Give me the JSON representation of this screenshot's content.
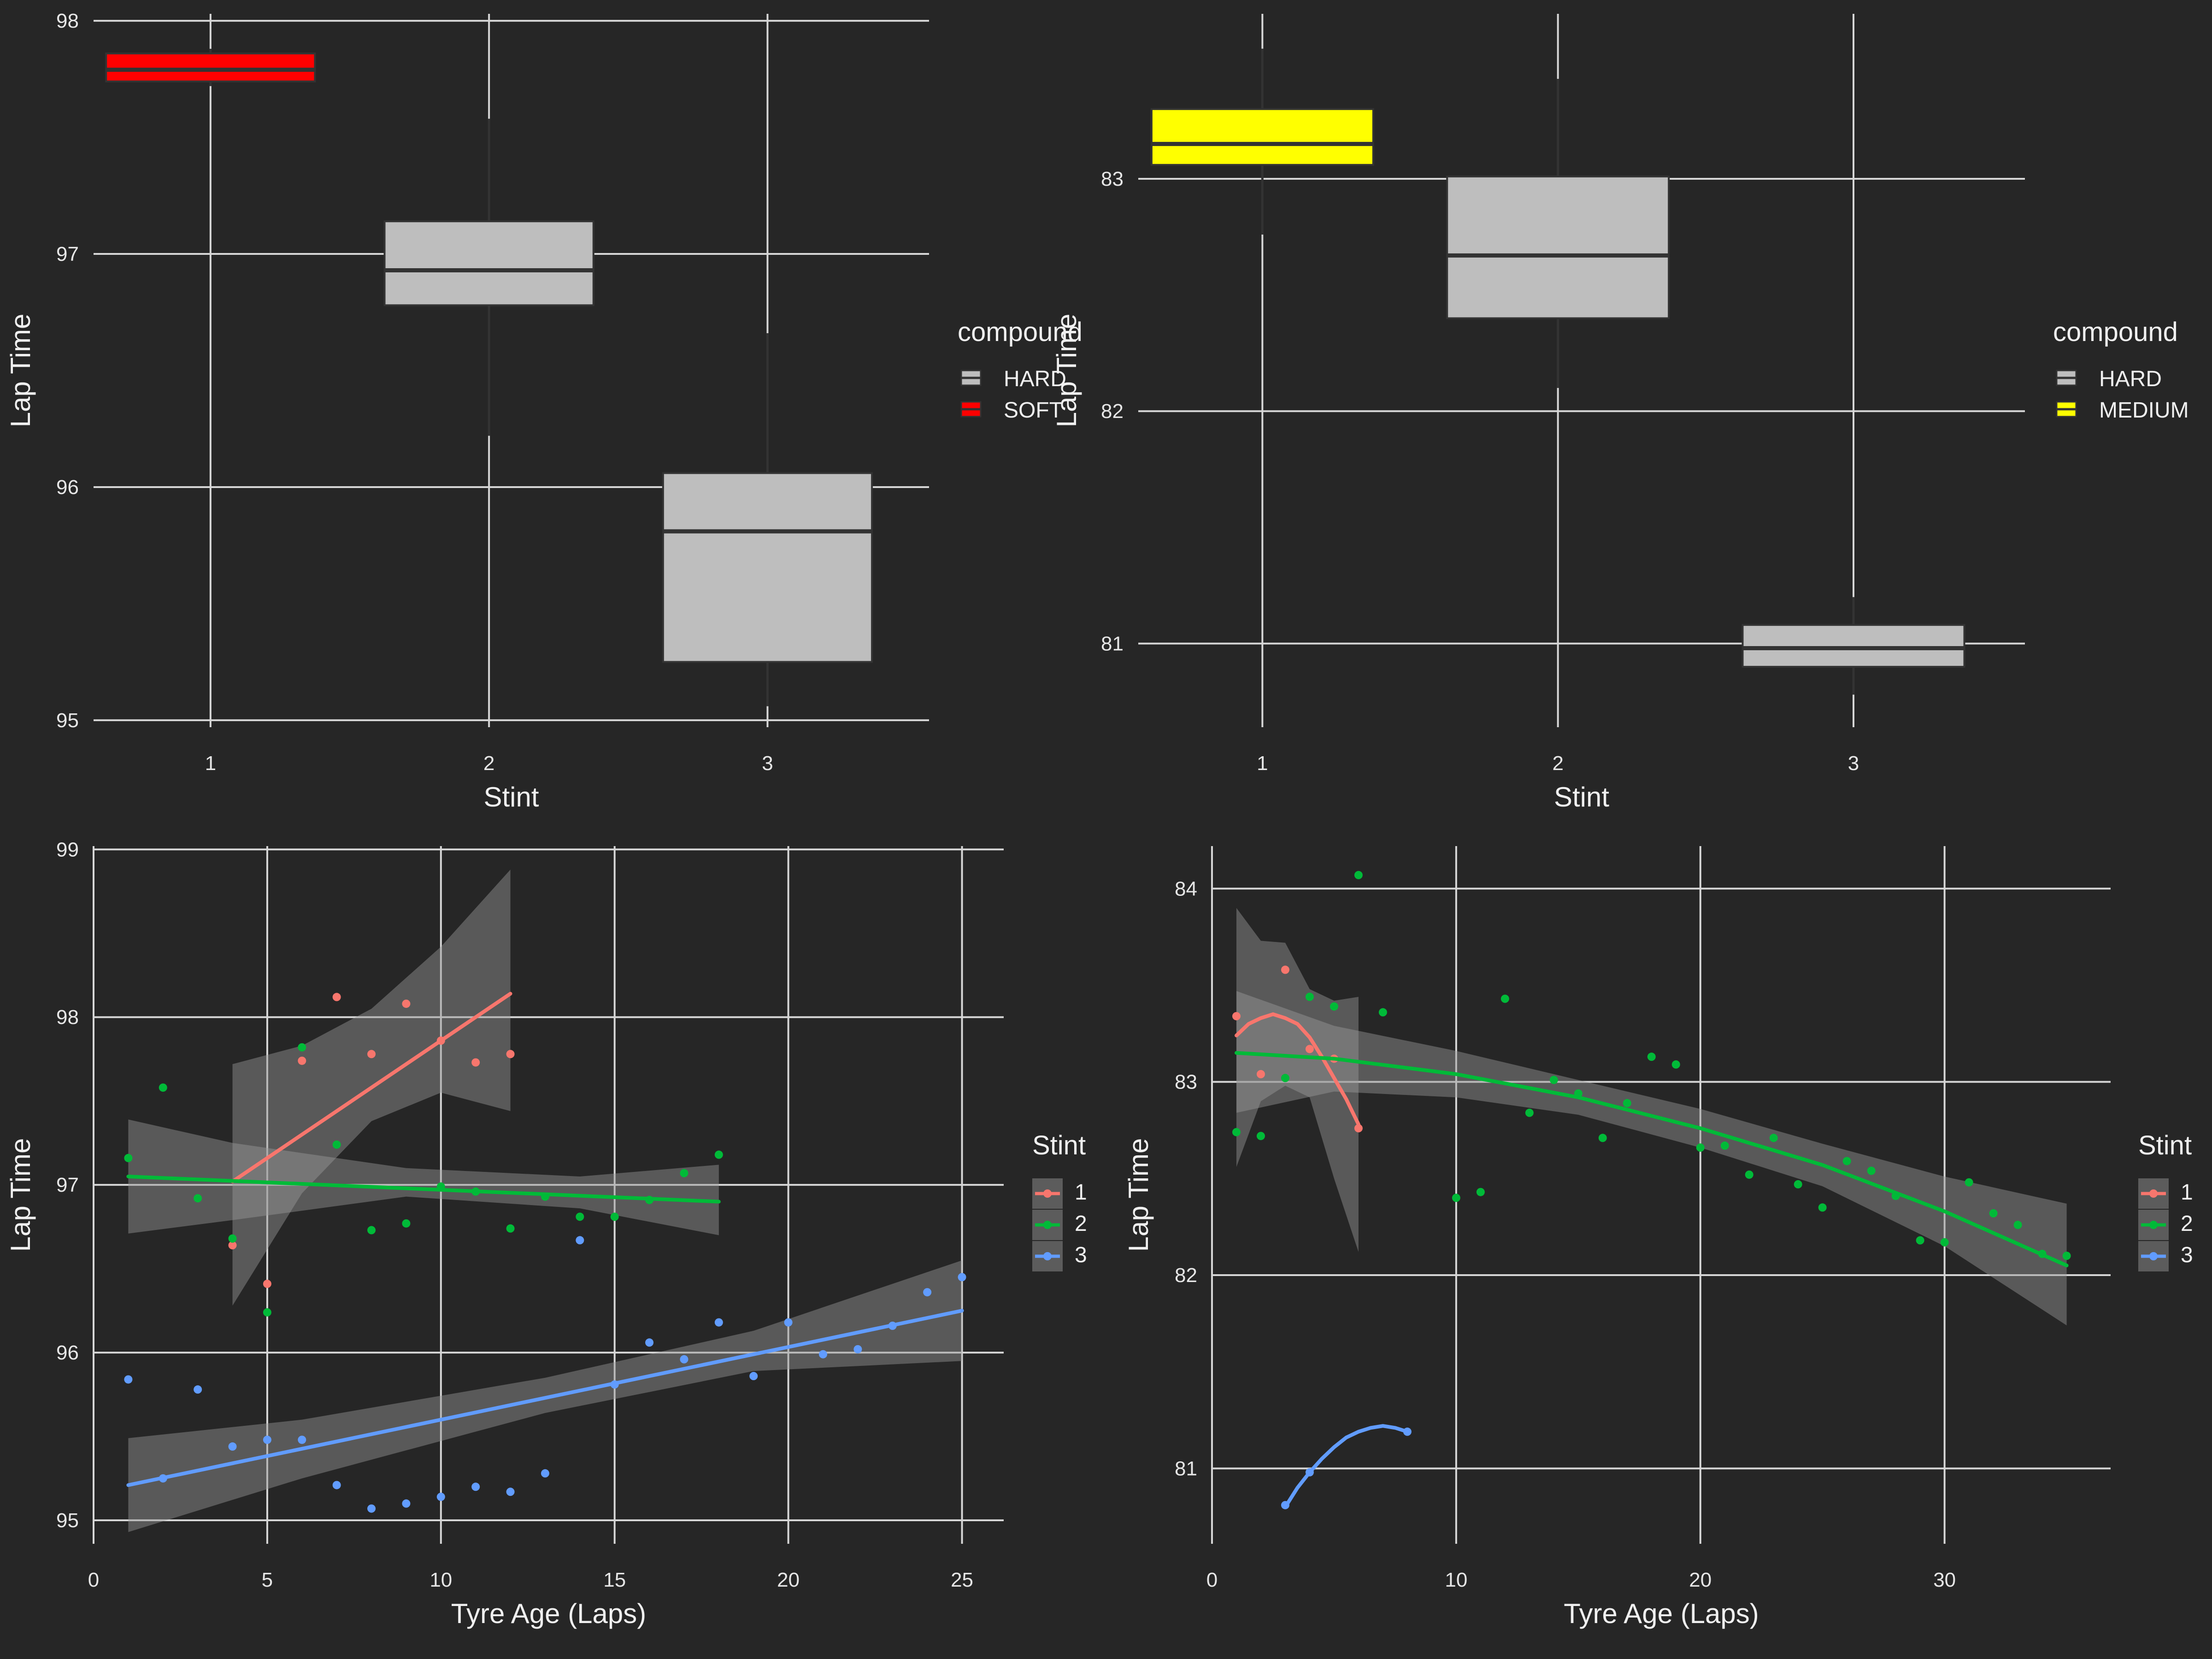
{
  "chart_data": [
    {
      "type": "box",
      "xlabel": "Stint",
      "ylabel": "Lap Time",
      "categories": [
        "1",
        "2",
        "3"
      ],
      "y_ticks": [
        95,
        96,
        97,
        98
      ],
      "ylim": [
        94.97,
        98.03
      ],
      "legend": {
        "title": "compound",
        "position": "right",
        "items": [
          {
            "label": "HARD",
            "color": "#bebebe"
          },
          {
            "label": "SOFT",
            "color": "#ff0000"
          }
        ]
      },
      "boxes": [
        {
          "stint": 1,
          "compound": "SOFT",
          "color": "#ff0000",
          "q1": 97.74,
          "median": 97.79,
          "q3": 97.86,
          "whisker_low": 97.72,
          "whisker_high": 97.88
        },
        {
          "stint": 2,
          "compound": "HARD",
          "color": "#bebebe",
          "q1": 96.78,
          "median": 96.93,
          "q3": 97.14,
          "whisker_low": 96.22,
          "whisker_high": 97.58
        },
        {
          "stint": 3,
          "compound": "HARD",
          "color": "#bebebe",
          "q1": 95.25,
          "median": 95.81,
          "q3": 96.06,
          "whisker_low": 95.06,
          "whisker_high": 96.66
        }
      ]
    },
    {
      "type": "box",
      "xlabel": "Stint",
      "ylabel": "Lap Time",
      "categories": [
        "1",
        "2",
        "3"
      ],
      "y_ticks": [
        81,
        82,
        83
      ],
      "ylim": [
        80.64,
        83.71
      ],
      "legend": {
        "title": "compound",
        "position": "right",
        "items": [
          {
            "label": "HARD",
            "color": "#bebebe"
          },
          {
            "label": "MEDIUM",
            "color": "#ffff00"
          }
        ]
      },
      "boxes": [
        {
          "stint": 1,
          "compound": "MEDIUM",
          "color": "#ffff00",
          "q1": 83.06,
          "median": 83.15,
          "q3": 83.3,
          "whisker_low": 82.76,
          "whisker_high": 83.56
        },
        {
          "stint": 2,
          "compound": "HARD",
          "color": "#bebebe",
          "q1": 82.4,
          "median": 82.67,
          "q3": 83.01,
          "whisker_low": 82.1,
          "whisker_high": 83.43
        },
        {
          "stint": 3,
          "compound": "HARD",
          "color": "#bebebe",
          "q1": 80.9,
          "median": 80.98,
          "q3": 81.08,
          "whisker_low": 80.78,
          "whisker_high": 81.2
        }
      ]
    },
    {
      "type": "scatter",
      "xlabel": "Tyre Age (Laps)",
      "ylabel": "Lap Time",
      "x_ticks": [
        0,
        5,
        10,
        15,
        20,
        25
      ],
      "y_ticks": [
        95,
        96,
        97,
        98,
        99
      ],
      "xlim": [
        0,
        26.2
      ],
      "ylim": [
        94.86,
        99.02
      ],
      "legend": {
        "title": "Stint",
        "position": "right",
        "items": [
          {
            "label": "1",
            "color": "#f8766d"
          },
          {
            "label": "2",
            "color": "#00ba38"
          },
          {
            "label": "3",
            "color": "#619cff"
          }
        ]
      },
      "series": [
        {
          "name": "1",
          "color": "#f8766d",
          "points": [
            [
              4,
              96.64
            ],
            [
              5,
              96.41
            ],
            [
              6,
              97.74
            ],
            [
              7,
              98.12
            ],
            [
              8,
              97.78
            ],
            [
              9,
              98.08
            ],
            [
              10,
              97.86
            ],
            [
              11,
              97.73
            ],
            [
              12,
              97.78
            ]
          ],
          "fit": [
            [
              4,
              97.02
            ],
            [
              12,
              98.14
            ]
          ],
          "band": [
            [
              4,
              96.28,
              97.72
            ],
            [
              6,
              96.95,
              97.83
            ],
            [
              8,
              97.38,
              98.05
            ],
            [
              10,
              97.55,
              98.42
            ],
            [
              12,
              97.44,
              98.88
            ]
          ]
        },
        {
          "name": "2",
          "color": "#00ba38",
          "points": [
            [
              1,
              97.16
            ],
            [
              2,
              97.58
            ],
            [
              3,
              96.92
            ],
            [
              4,
              96.68
            ],
            [
              5,
              96.24
            ],
            [
              6,
              97.82
            ],
            [
              7,
              97.24
            ],
            [
              8,
              96.73
            ],
            [
              9,
              96.77
            ],
            [
              10,
              96.99
            ],
            [
              11,
              96.96
            ],
            [
              12,
              96.74
            ],
            [
              13,
              96.93
            ],
            [
              14,
              96.81
            ],
            [
              15,
              96.81
            ],
            [
              16,
              96.91
            ],
            [
              17,
              97.07
            ],
            [
              18,
              97.18
            ]
          ],
          "fit": [
            [
              1,
              97.05
            ],
            [
              18,
              96.9
            ]
          ],
          "band": [
            [
              1,
              96.71,
              97.39
            ],
            [
              4,
              96.79,
              97.25
            ],
            [
              9,
              96.93,
              97.1
            ],
            [
              14,
              96.86,
              97.05
            ],
            [
              18,
              96.7,
              97.12
            ]
          ]
        },
        {
          "name": "3",
          "color": "#619cff",
          "points": [
            [
              1,
              95.84
            ],
            [
              2,
              95.25
            ],
            [
              3,
              95.78
            ],
            [
              4,
              95.44
            ],
            [
              5,
              95.48
            ],
            [
              6,
              95.48
            ],
            [
              7,
              95.21
            ],
            [
              8,
              95.07
            ],
            [
              9,
              95.1
            ],
            [
              10,
              95.14
            ],
            [
              11,
              95.2
            ],
            [
              12,
              95.17
            ],
            [
              13,
              95.28
            ],
            [
              14,
              96.67
            ],
            [
              15,
              95.81
            ],
            [
              16,
              96.06
            ],
            [
              17,
              95.96
            ],
            [
              18,
              96.18
            ],
            [
              19,
              95.86
            ],
            [
              20,
              96.18
            ],
            [
              21,
              95.99
            ],
            [
              22,
              96.02
            ],
            [
              23,
              96.16
            ],
            [
              24,
              96.36
            ],
            [
              25,
              96.45
            ]
          ],
          "fit": [
            [
              1,
              95.21
            ],
            [
              25,
              96.25
            ]
          ],
          "band": [
            [
              1,
              94.93,
              95.49
            ],
            [
              6,
              95.25,
              95.6
            ],
            [
              13,
              95.64,
              95.85
            ],
            [
              19,
              95.89,
              96.13
            ],
            [
              25,
              95.95,
              96.55
            ]
          ]
        }
      ]
    },
    {
      "type": "scatter",
      "xlabel": "Tyre Age (Laps)",
      "ylabel": "Lap Time",
      "x_ticks": [
        0,
        10,
        20,
        30
      ],
      "y_ticks": [
        81,
        82,
        83,
        84
      ],
      "xlim": [
        0,
        36.8
      ],
      "ylim": [
        80.61,
        84.22
      ],
      "legend": {
        "title": "Stint",
        "position": "right",
        "items": [
          {
            "label": "1",
            "color": "#f8766d"
          },
          {
            "label": "2",
            "color": "#00ba38"
          },
          {
            "label": "3",
            "color": "#619cff"
          }
        ]
      },
      "series": [
        {
          "name": "1",
          "color": "#f8766d",
          "points": [
            [
              1,
              83.34
            ],
            [
              2,
              83.04
            ],
            [
              3,
              83.58
            ],
            [
              4,
              83.17
            ],
            [
              5,
              83.12
            ],
            [
              6,
              82.76
            ]
          ],
          "fit": [
            [
              1,
              83.24
            ],
            [
              1.5,
              83.3
            ],
            [
              2,
              83.33
            ],
            [
              2.5,
              83.35
            ],
            [
              3,
              83.33
            ],
            [
              3.5,
              83.3
            ],
            [
              4,
              83.23
            ],
            [
              4.5,
              83.13
            ],
            [
              5,
              83.02
            ],
            [
              5.5,
              82.91
            ],
            [
              6,
              82.78
            ]
          ],
          "band": [
            [
              1,
              82.56,
              83.9
            ],
            [
              2,
              82.9,
              83.73
            ],
            [
              3,
              82.98,
              83.72
            ],
            [
              4,
              82.92,
              83.48
            ],
            [
              5,
              82.5,
              83.42
            ],
            [
              6,
              82.12,
              83.44
            ]
          ]
        },
        {
          "name": "2",
          "color": "#00ba38",
          "points": [
            [
              1,
              82.74
            ],
            [
              2,
              82.72
            ],
            [
              3,
              83.02
            ],
            [
              4,
              83.44
            ],
            [
              5,
              83.39
            ],
            [
              6,
              84.07
            ],
            [
              7,
              83.36
            ],
            [
              10,
              82.4
            ],
            [
              11,
              82.43
            ],
            [
              12,
              83.43
            ],
            [
              13,
              82.84
            ],
            [
              14,
              83.01
            ],
            [
              15,
              82.94
            ],
            [
              16,
              82.71
            ],
            [
              17,
              82.89
            ],
            [
              18,
              83.13
            ],
            [
              19,
              83.09
            ],
            [
              20,
              82.66
            ],
            [
              21,
              82.67
            ],
            [
              22,
              82.52
            ],
            [
              23,
              82.71
            ],
            [
              24,
              82.47
            ],
            [
              25,
              82.35
            ],
            [
              26,
              82.59
            ],
            [
              27,
              82.54
            ],
            [
              28,
              82.41
            ],
            [
              29,
              82.18
            ],
            [
              30,
              82.17
            ],
            [
              31,
              82.48
            ],
            [
              32,
              82.32
            ],
            [
              33,
              82.26
            ],
            [
              34,
              82.11
            ],
            [
              35,
              82.1
            ]
          ],
          "fit": [
            [
              1,
              83.15
            ],
            [
              5,
              83.12
            ],
            [
              10,
              83.04
            ],
            [
              15,
              82.92
            ],
            [
              20,
              82.76
            ],
            [
              25,
              82.57
            ],
            [
              30,
              82.33
            ],
            [
              35,
              82.05
            ]
          ],
          "band": [
            [
              1,
              82.84,
              83.47
            ],
            [
              5,
              82.95,
              83.29
            ],
            [
              10,
              82.92,
              83.16
            ],
            [
              15,
              82.83,
              83.01
            ],
            [
              20,
              82.66,
              82.86
            ],
            [
              25,
              82.46,
              82.68
            ],
            [
              30,
              82.15,
              82.51
            ],
            [
              35,
              81.74,
              82.37
            ]
          ]
        },
        {
          "name": "3",
          "color": "#619cff",
          "points": [
            [
              3,
              80.81
            ],
            [
              4,
              80.98
            ],
            [
              8,
              81.19
            ]
          ],
          "fit": [
            [
              3,
              80.8
            ],
            [
              3.5,
              80.9
            ],
            [
              4,
              80.98
            ],
            [
              4.5,
              81.05
            ],
            [
              5,
              81.11
            ],
            [
              5.5,
              81.16
            ],
            [
              6,
              81.19
            ],
            [
              6.5,
              81.21
            ],
            [
              7,
              81.22
            ],
            [
              7.5,
              81.21
            ],
            [
              8,
              81.19
            ]
          ],
          "band": []
        }
      ]
    }
  ]
}
